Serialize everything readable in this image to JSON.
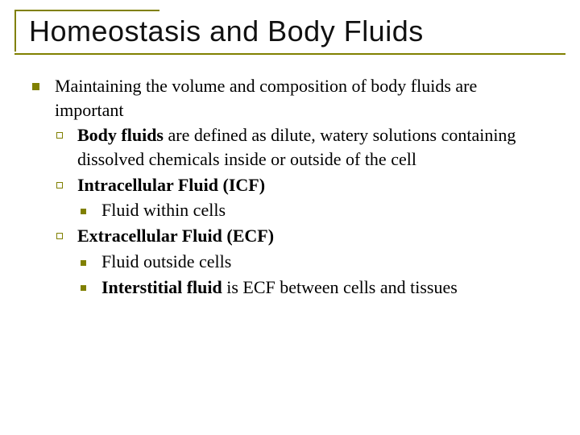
{
  "colors": {
    "accent": "#808000",
    "text": "#000000",
    "background": "#ffffff"
  },
  "typography": {
    "title_font": "Arial",
    "title_size_pt": 36,
    "body_font": "Georgia",
    "body_size_pt": 22
  },
  "title": "Homeostasis and Body Fluids",
  "l1": {
    "intro": "Maintaining the volume and composition of body fluids are important",
    "items": [
      {
        "bold": "Body fluids",
        "rest": " are defined as dilute, watery solutions containing dissolved chemicals inside or outside of the cell",
        "sub": []
      },
      {
        "bold": "Intracellular Fluid (ICF)",
        "rest": "",
        "sub": [
          {
            "bold": "",
            "rest": "Fluid within cells"
          }
        ]
      },
      {
        "bold": "Extracellular Fluid (ECF)",
        "rest": "",
        "sub": [
          {
            "bold": "",
            "rest": "Fluid outside cells"
          },
          {
            "bold": "Interstitial fluid",
            "rest": " is ECF between cells and tissues"
          }
        ]
      }
    ]
  }
}
